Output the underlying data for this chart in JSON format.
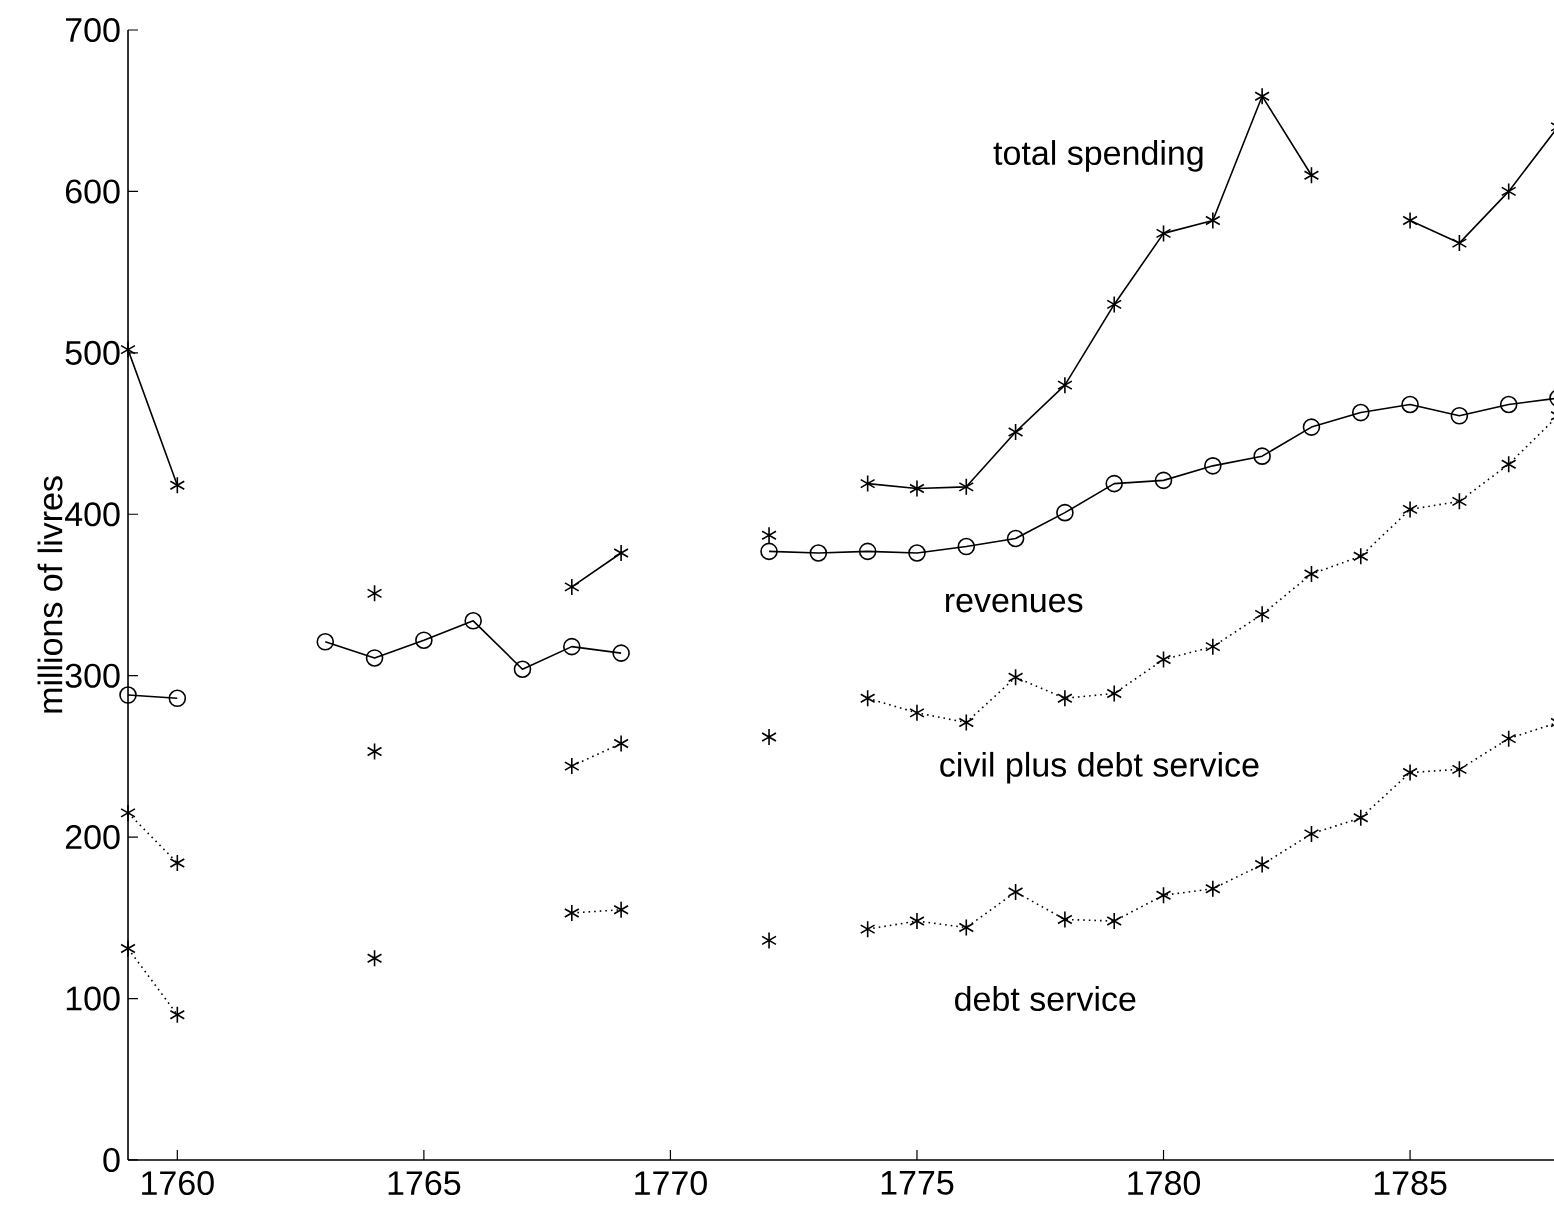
{
  "chart_data": {
    "type": "line",
    "ylabel": "millions of livres",
    "x": [
      1759,
      1760,
      1761,
      1762,
      1763,
      1764,
      1765,
      1766,
      1767,
      1768,
      1769,
      1770,
      1771,
      1772,
      1773,
      1774,
      1775,
      1776,
      1777,
      1778,
      1779,
      1780,
      1781,
      1782,
      1783,
      1784,
      1785,
      1786,
      1787,
      1788
    ],
    "series": [
      {
        "name": "total spending",
        "color": "#000000",
        "marker": "cross",
        "line_style": "solid",
        "values": [
          502,
          418,
          null,
          null,
          null,
          351,
          null,
          null,
          null,
          355,
          376,
          null,
          null,
          387,
          null,
          419,
          416,
          417,
          451,
          480,
          530,
          574,
          582,
          659,
          610,
          null,
          582,
          568,
          600,
          640
        ]
      },
      {
        "name": "revenues",
        "color": "#000000",
        "marker": "circle",
        "line_style": "solid",
        "values": [
          288,
          286,
          null,
          null,
          321,
          311,
          322,
          334,
          304,
          318,
          314,
          null,
          null,
          377,
          376,
          377,
          376,
          380,
          385,
          401,
          419,
          421,
          430,
          436,
          454,
          463,
          468,
          461,
          468,
          472
        ]
      },
      {
        "name": "civil plus debt service",
        "color": "#000000",
        "marker": "cross",
        "line_style": "dotted",
        "values": [
          215,
          184,
          null,
          null,
          null,
          253,
          null,
          null,
          null,
          244,
          258,
          null,
          null,
          262,
          null,
          286,
          277,
          271,
          299,
          286,
          289,
          310,
          318,
          338,
          363,
          374,
          403,
          408,
          431,
          461
        ]
      },
      {
        "name": "debt service",
        "color": "#000000",
        "marker": "cross",
        "line_style": "dotted",
        "values": [
          131,
          90,
          null,
          null,
          null,
          125,
          null,
          null,
          null,
          153,
          155,
          null,
          null,
          136,
          null,
          143,
          148,
          144,
          166,
          149,
          148,
          164,
          168,
          183,
          202,
          212,
          240,
          242,
          261,
          271
        ]
      }
    ],
    "xlim": [
      1759,
      1788
    ],
    "xticks": [
      1760,
      1765,
      1770,
      1775,
      1780,
      1785
    ],
    "ylim": [
      0,
      700
    ],
    "yticks": [
      0,
      100,
      200,
      300,
      400,
      500,
      600,
      700
    ],
    "grid": false,
    "legend": false
  }
}
